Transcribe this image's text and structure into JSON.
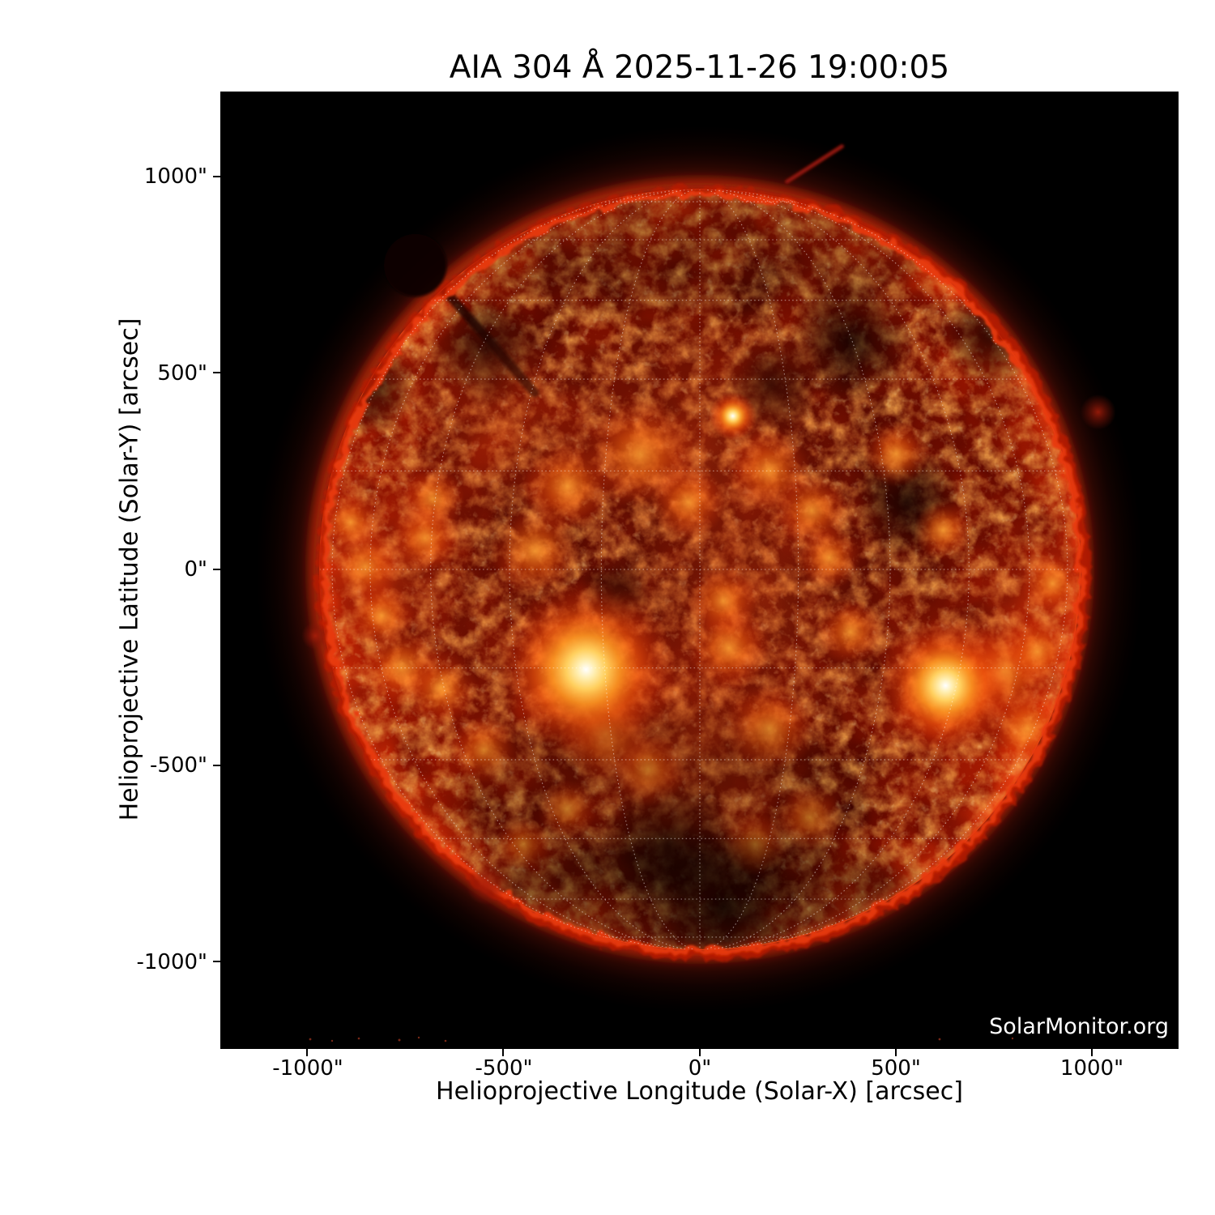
{
  "title": {
    "pre": "AIA 304 ",
    "angstrom": "Å",
    "post": " 2025-11-26 19:00:05"
  },
  "watermark": "SolarMonitor.org",
  "axes": {
    "x": {
      "label": "Helioprojective Longitude (Solar-X) [arcsec]",
      "ticks": [
        {
          "value": -1000,
          "label": "-1000\""
        },
        {
          "value": -500,
          "label": "-500\""
        },
        {
          "value": 0,
          "label": "0\""
        },
        {
          "value": 500,
          "label": "500\""
        },
        {
          "value": 1000,
          "label": "1000\""
        }
      ]
    },
    "y": {
      "label": "Helioprojective Latitude (Solar-Y) [arcsec]",
      "ticks": [
        {
          "value": 1000,
          "label": "1000\""
        },
        {
          "value": 500,
          "label": "500\""
        },
        {
          "value": 0,
          "label": "0\""
        },
        {
          "value": -500,
          "label": "-500\""
        },
        {
          "value": -1000,
          "label": "-1000\""
        }
      ]
    }
  },
  "chart_data": {
    "type": "heatmap",
    "title": "AIA 304 Å 2025-11-26 19:00:05",
    "instrument": "AIA",
    "wavelength_angstrom": 304,
    "observation_time": "2025-11-26 19:00:05",
    "xlabel": "Helioprojective Longitude (Solar-X) [arcsec]",
    "ylabel": "Helioprojective Latitude (Solar-Y) [arcsec]",
    "xlim": [
      -1220,
      1220
    ],
    "ylim": [
      -1220,
      1220
    ],
    "x_ticks_arcsec": [
      -1000,
      -500,
      0,
      500,
      1000
    ],
    "y_ticks_arcsec": [
      -1000,
      -500,
      0,
      500,
      1000
    ],
    "solar_disk": {
      "center_arcsec": [
        0,
        0
      ],
      "radius_arcsec": 970
    },
    "grid": {
      "kind": "heliographic",
      "spacing_deg": 15,
      "style": "dotted",
      "color": "#ffffff",
      "opacity": 0.5
    },
    "palette": {
      "background": "#000000",
      "disk_dark": "#4e0600",
      "disk_mid": "#8c1200",
      "limb": "#ff5a1e",
      "bright_patch": "#ff7a1a",
      "active_region_core": "#ffffff",
      "grid_line": "#ffffff",
      "watermark_text": "#ffffff"
    },
    "features": {
      "bright_cores": [
        [
          -290,
          -255,
          230
        ],
        [
          626,
          -296,
          175
        ],
        [
          84,
          391,
          62
        ]
      ],
      "bright_patches": [
        [
          -152,
          294,
          140
        ],
        [
          -338,
          212,
          115
        ],
        [
          -29,
          171,
          95
        ],
        [
          177,
          253,
          105
        ],
        [
          285,
          150,
          95
        ],
        [
          -420,
          47,
          115
        ],
        [
          74,
          -200,
          105
        ],
        [
          177,
          -406,
          115
        ],
        [
          -132,
          -509,
          95
        ],
        [
          383,
          -159,
          85
        ],
        [
          -852,
          6,
          95
        ],
        [
          -811,
          -117,
          85
        ],
        [
          -890,
          120,
          75
        ],
        [
          774,
          -261,
          125
        ],
        [
          836,
          -406,
          105
        ],
        [
          280,
          -632,
          85
        ],
        [
          -338,
          -611,
          75
        ],
        [
          -660,
          -300,
          95
        ],
        [
          500,
          295,
          85
        ],
        [
          620,
          100,
          75
        ],
        [
          -550,
          -460,
          85
        ],
        [
          -240,
          -420,
          120
        ],
        [
          60,
          -80,
          90
        ],
        [
          330,
          30,
          80
        ],
        [
          -680,
          180,
          80
        ],
        [
          898,
          -35,
          80
        ],
        [
          860,
          -210,
          90
        ],
        [
          -450,
          -700,
          70
        ],
        [
          140,
          -700,
          80
        ],
        [
          -760,
          -250,
          100
        ],
        [
          -700,
          80,
          90
        ]
      ],
      "washes": [
        [
          0,
          300,
          460
        ],
        [
          -300,
          -300,
          380
        ],
        [
          650,
          -300,
          290
        ],
        [
          -780,
          0,
          310
        ],
        [
          150,
          -80,
          420
        ],
        [
          0,
          -460,
          370
        ],
        [
          -500,
          350,
          300
        ],
        [
          860,
          -80,
          240
        ]
      ],
      "dark_patches": [
        [
          -543,
          562,
          150
        ],
        [
          383,
          583,
          160
        ],
        [
          527,
          171,
          140
        ],
        [
          180,
          470,
          120
        ],
        [
          -214,
          -58,
          90
        ],
        [
          -80,
          -700,
          170
        ],
        [
          60,
          -860,
          200
        ],
        [
          -850,
          470,
          130
        ],
        [
          750,
          600,
          140
        ]
      ],
      "prominences": [
        {
          "type": "jet",
          "from": [
            222,
            988
          ],
          "to": [
            362,
            1078
          ]
        },
        {
          "type": "blob",
          "at": [
            1015,
            401
          ],
          "r": 45
        },
        {
          "type": "blob",
          "at": [
            -980,
            -169
          ],
          "r": 35
        },
        {
          "type": "blob",
          "at": [
            -545,
            -805
          ],
          "r": 50
        },
        {
          "type": "dark_arch",
          "at": [
            -725,
            775
          ],
          "r": 80
        }
      ]
    }
  }
}
